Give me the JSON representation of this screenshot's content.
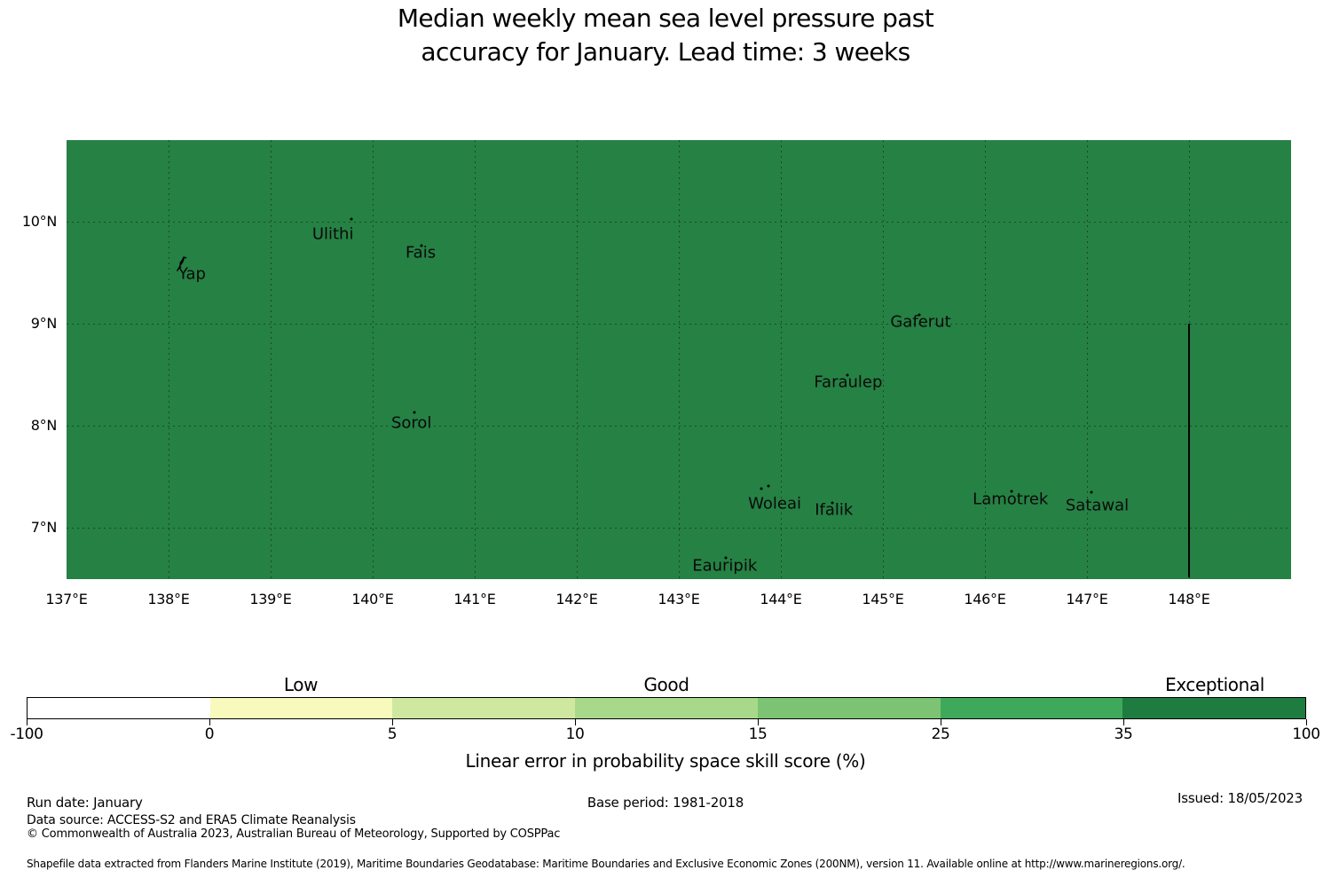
{
  "title": {
    "line1": "Median weekly mean sea level pressure past",
    "line2": "accuracy for January. Lead time: 3 weeks"
  },
  "chart_data": {
    "type": "choropleth-map",
    "title": "Median weekly mean sea level pressure past accuracy for January. Lead time: 3 weeks",
    "region_fill_color": "#268144",
    "region_value_bin": "35-100 (Exceptional)",
    "lon_range": [
      137.0,
      149.0
    ],
    "lat_range": [
      6.5,
      10.8
    ],
    "grid_lons": [
      138,
      139,
      140,
      141,
      142,
      143,
      144,
      145,
      146,
      147,
      148
    ],
    "grid_lats": [
      7,
      8,
      9,
      10
    ],
    "x_ticks": [
      {
        "lon": 137,
        "label": "137°E"
      },
      {
        "lon": 138,
        "label": "138°E"
      },
      {
        "lon": 139,
        "label": "139°E"
      },
      {
        "lon": 140,
        "label": "140°E"
      },
      {
        "lon": 141,
        "label": "141°E"
      },
      {
        "lon": 142,
        "label": "142°E"
      },
      {
        "lon": 143,
        "label": "143°E"
      },
      {
        "lon": 144,
        "label": "144°E"
      },
      {
        "lon": 145,
        "label": "145°E"
      },
      {
        "lon": 146,
        "label": "146°E"
      },
      {
        "lon": 147,
        "label": "147°E"
      },
      {
        "lon": 148,
        "label": "148°E"
      }
    ],
    "y_ticks": [
      {
        "lat": 7,
        "label": "7°N"
      },
      {
        "lat": 8,
        "label": "8°N"
      },
      {
        "lat": 9,
        "label": "9°N"
      },
      {
        "lat": 10,
        "label": "10°N"
      }
    ],
    "eez_boundary_line": {
      "lon": 148.0,
      "lat_top": 9.0,
      "lat_bottom": 6.52
    },
    "islands": [
      {
        "name": "Yap",
        "marker": "shape",
        "marker_lon": 138.13,
        "marker_lat": 9.57,
        "label_lon": 138.23,
        "label_lat": 9.49
      },
      {
        "name": "Ulithi",
        "dots": [
          [
            139.79,
            10.03
          ]
        ],
        "label_lon": 139.61,
        "label_lat": 9.88
      },
      {
        "name": "Fais",
        "dots": [
          [
            140.48,
            9.77
          ]
        ],
        "label_lon": 140.47,
        "label_lat": 9.7
      },
      {
        "name": "Sorol",
        "dots": [
          [
            140.41,
            8.13
          ]
        ],
        "label_lon": 140.38,
        "label_lat": 8.03
      },
      {
        "name": "Gaferut",
        "dots": [
          [
            145.36,
            9.09
          ]
        ],
        "label_lon": 145.37,
        "label_lat": 9.02
      },
      {
        "name": "Faraulep",
        "dots": [
          [
            144.65,
            8.5
          ]
        ],
        "label_lon": 144.66,
        "label_lat": 8.43
      },
      {
        "name": "Woleai",
        "dots": [
          [
            143.81,
            7.39
          ],
          [
            143.88,
            7.41
          ]
        ],
        "label_lon": 143.94,
        "label_lat": 7.24
      },
      {
        "name": "Ifalik",
        "dots": [
          [
            144.5,
            7.25
          ]
        ],
        "label_lon": 144.52,
        "label_lat": 7.18
      },
      {
        "name": "Lamotrek",
        "dots": [
          [
            146.26,
            7.36
          ]
        ],
        "label_lon": 146.25,
        "label_lat": 7.28
      },
      {
        "name": "Satawal",
        "dots": [
          [
            147.04,
            7.35
          ]
        ],
        "label_lon": 147.1,
        "label_lat": 7.22
      },
      {
        "name": "Eauripik",
        "dots": [
          [
            143.46,
            6.71
          ]
        ],
        "label_lon": 143.45,
        "label_lat": 6.63
      }
    ],
    "colorbar": {
      "boundaries": [
        -100,
        0,
        5,
        10,
        15,
        25,
        35,
        100
      ],
      "tick_labels": [
        "-100",
        "0",
        "5",
        "10",
        "15",
        "25",
        "35",
        "100"
      ],
      "colors": [
        "#ffffff",
        "#f7fabc",
        "#cfe89f",
        "#a8d98b",
        "#7cc474",
        "#3ea95b",
        "#1e7c40"
      ],
      "category_labels": [
        {
          "text": "Low",
          "from": 0,
          "to": 5
        },
        {
          "text": "Good",
          "from": 10,
          "to": 15
        },
        {
          "text": "Exceptional",
          "from": 35,
          "to": 100
        }
      ],
      "axis_title": "Linear error in probability space skill score (%)"
    }
  },
  "footer": {
    "run_date": "Run date: January",
    "base_period": "Base period: 1981-2018",
    "issued": "Issued: 18/05/2023",
    "data_source": "Data source: ACCESS-S2 and ERA5 Climate Reanalysis",
    "copyright": "© Commonwealth of Australia 2023, Australian Bureau of Meteorology, Supported by COSPPac",
    "shapefile": "Shapefile data extracted from Flanders Marine Institute (2019), Maritime Boundaries Geodatabase: Maritime Boundaries and Exclusive Economic Zones (200NM), version 11. Available online at http://www.marineregions.org/."
  }
}
